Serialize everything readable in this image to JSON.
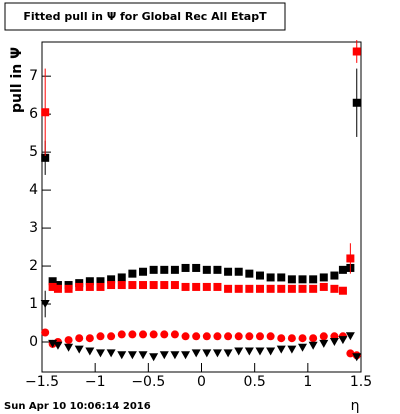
{
  "chart_data": {
    "type": "scatter",
    "title": "Fitted pull in Ψ  for Global Rec All EtapT",
    "date": "Sun Apr 10 10:06:14 2016",
    "x_label": "η",
    "y_label": "pull in Ψ",
    "xlim": [
      -1.5,
      1.5
    ],
    "ylim": [
      -0.79,
      7.9
    ],
    "xticks": [
      {
        "value": -1.5,
        "label": "−1.5"
      },
      {
        "value": -1,
        "label": "−1"
      },
      {
        "value": -0.5,
        "label": "−0.5"
      },
      0,
      0.5,
      1,
      1.5
    ],
    "yticks": [
      0,
      1,
      2,
      3,
      4,
      5,
      6,
      7
    ],
    "x": [
      -1.47,
      -1.4,
      -1.35,
      -1.25,
      -1.15,
      -1.05,
      -0.95,
      -0.85,
      -0.75,
      -0.65,
      -0.55,
      -0.45,
      -0.35,
      -0.25,
      -0.15,
      -0.05,
      0.05,
      0.15,
      0.25,
      0.35,
      0.45,
      0.55,
      0.65,
      0.75,
      0.85,
      0.95,
      1.05,
      1.15,
      1.25,
      1.33,
      1.4,
      1.46
    ],
    "series": [
      {
        "color": "#000000",
        "marker": "square",
        "values": [
          4.85,
          1.6,
          1.5,
          1.5,
          1.55,
          1.6,
          1.6,
          1.65,
          1.7,
          1.8,
          1.85,
          1.9,
          1.9,
          1.9,
          1.95,
          1.95,
          1.9,
          1.9,
          1.85,
          1.85,
          1.8,
          1.75,
          1.7,
          1.7,
          1.65,
          1.65,
          1.65,
          1.7,
          1.75,
          1.9,
          1.95,
          6.3
        ],
        "errors": [
          0.45,
          null,
          null,
          null,
          null,
          null,
          null,
          null,
          null,
          null,
          null,
          null,
          null,
          null,
          null,
          null,
          null,
          null,
          null,
          null,
          null,
          null,
          null,
          null,
          null,
          null,
          null,
          null,
          null,
          null,
          null,
          0.9
        ]
      },
      {
        "color": "#ff0000",
        "marker": "square",
        "values": [
          6.05,
          1.45,
          1.4,
          1.4,
          1.45,
          1.45,
          1.45,
          1.5,
          1.5,
          1.5,
          1.5,
          1.5,
          1.5,
          1.5,
          1.45,
          1.45,
          1.45,
          1.45,
          1.4,
          1.4,
          1.4,
          1.4,
          1.4,
          1.4,
          1.4,
          1.4,
          1.4,
          1.45,
          1.4,
          1.35,
          2.2,
          7.65
        ],
        "errors": [
          1.15,
          null,
          null,
          null,
          null,
          null,
          null,
          null,
          null,
          null,
          null,
          null,
          null,
          null,
          null,
          null,
          null,
          null,
          null,
          null,
          null,
          null,
          null,
          null,
          null,
          null,
          null,
          null,
          null,
          null,
          0.4,
          0.3
        ]
      },
      {
        "color": "#ff0000",
        "marker": "circle",
        "values": [
          0.25,
          -0.05,
          0,
          0.05,
          0.1,
          0.1,
          0.15,
          0.15,
          0.2,
          0.2,
          0.2,
          0.2,
          0.2,
          0.2,
          0.15,
          0.15,
          0.15,
          0.15,
          0.15,
          0.15,
          0.15,
          0.15,
          0.15,
          0.1,
          0.1,
          0.1,
          0.1,
          0.15,
          0.15,
          0.15,
          -0.3,
          -0.35
        ]
      },
      {
        "color": "#000000",
        "marker": "triangle",
        "values": [
          1.0,
          -0.05,
          -0.1,
          -0.15,
          -0.2,
          -0.25,
          -0.3,
          -0.3,
          -0.35,
          -0.35,
          -0.35,
          -0.4,
          -0.35,
          -0.35,
          -0.35,
          -0.3,
          -0.3,
          -0.3,
          -0.3,
          -0.25,
          -0.25,
          -0.25,
          -0.25,
          -0.2,
          -0.2,
          -0.15,
          -0.1,
          -0.05,
          0,
          0.05,
          0.15,
          -0.4
        ],
        "errors": [
          0.35,
          null,
          null,
          null,
          null,
          null,
          null,
          null,
          null,
          null,
          null,
          null,
          null,
          null,
          null,
          null,
          null,
          null,
          null,
          null,
          null,
          null,
          null,
          null,
          null,
          null,
          null,
          null,
          null,
          null,
          null,
          null
        ]
      }
    ]
  }
}
